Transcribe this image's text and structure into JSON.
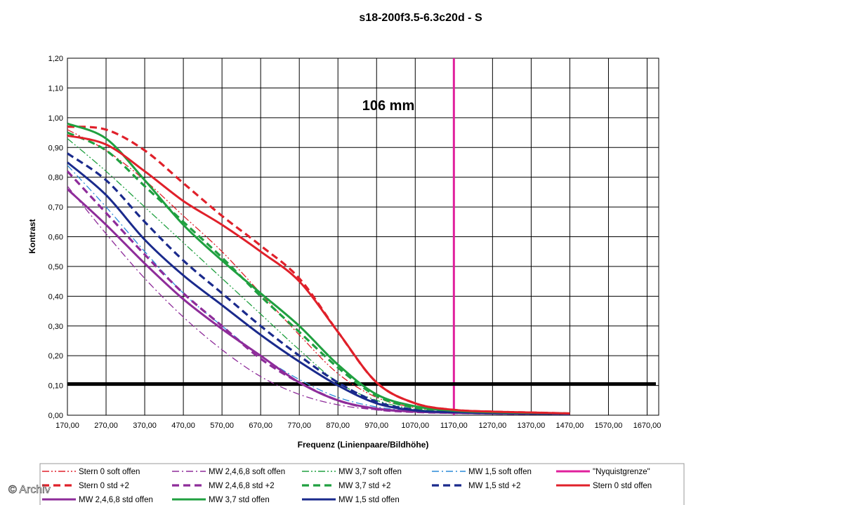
{
  "watermark": "© Archiv",
  "chart_data": {
    "type": "line",
    "title": "s18-200f3.5-6.3c20d - S",
    "annotation": "106 mm",
    "xlabel": "Frequenz (Linienpaare/Bildhöhe)",
    "ylabel": "Kontrast",
    "xlim": [
      170,
      1700
    ],
    "ylim": [
      0,
      1.2
    ],
    "x_ticks": [
      "170,00",
      "270,00",
      "370,00",
      "470,00",
      "570,00",
      "670,00",
      "770,00",
      "870,00",
      "970,00",
      "1070,00",
      "1170,00",
      "1270,00",
      "1370,00",
      "1470,00",
      "1570,00",
      "1670,00"
    ],
    "y_ticks": [
      "0,00",
      "0,10",
      "0,20",
      "0,30",
      "0,40",
      "0,50",
      "0,60",
      "0,70",
      "0,80",
      "0,90",
      "1,00",
      "1,10",
      "1,20"
    ],
    "grid": true,
    "legend_position": "bottom",
    "reference_lines": [
      {
        "name": "\"Nyquistgrenze\"",
        "orientation": "vertical",
        "value": 1170,
        "color": "#e0209c"
      },
      {
        "orientation": "horizontal",
        "value": 0.105,
        "color": "#000000"
      }
    ],
    "series": [
      {
        "name": "Stern 0 soft offen",
        "color": "#e0202a",
        "style": "dashdotdot",
        "x": [
          170,
          270,
          370,
          470,
          570,
          670,
          770,
          870,
          970,
          1070,
          1170,
          1270,
          1370,
          1470
        ],
        "y": [
          0.96,
          0.89,
          0.79,
          0.67,
          0.55,
          0.41,
          0.27,
          0.14,
          0.06,
          0.025,
          0.015,
          0.01,
          0.007,
          0.005
        ]
      },
      {
        "name": "MW 2,4,6,8 soft offen",
        "color": "#8e2c9a",
        "style": "dashdot",
        "x": [
          170,
          270,
          370,
          470,
          570,
          670,
          770,
          870,
          970,
          1070,
          1170,
          1270,
          1370,
          1470
        ],
        "y": [
          0.77,
          0.61,
          0.46,
          0.33,
          0.22,
          0.13,
          0.07,
          0.035,
          0.018,
          0.01,
          0.008,
          0.006,
          0.005,
          0.004
        ]
      },
      {
        "name": "MW 3,7 soft offen",
        "color": "#20a040",
        "style": "dashdotdot",
        "x": [
          170,
          270,
          370,
          470,
          570,
          670,
          770,
          870,
          970,
          1070,
          1170,
          1270,
          1370,
          1470
        ],
        "y": [
          0.93,
          0.82,
          0.7,
          0.58,
          0.46,
          0.34,
          0.22,
          0.11,
          0.05,
          0.02,
          0.012,
          0.008,
          0.006,
          0.005
        ]
      },
      {
        "name": "MW 1,5 soft offen",
        "color": "#2a8ad8",
        "style": "dashdot",
        "x": [
          170,
          270,
          370,
          470,
          570,
          670,
          770,
          870,
          970,
          1070,
          1170,
          1270,
          1370,
          1470
        ],
        "y": [
          0.84,
          0.7,
          0.55,
          0.41,
          0.3,
          0.2,
          0.12,
          0.06,
          0.028,
          0.014,
          0.009,
          0.007,
          0.005,
          0.004
        ]
      },
      {
        "name": "\"Nyquistgrenze\"",
        "color": "#e0209c",
        "style": "solid",
        "x": [],
        "y": []
      },
      {
        "name": "Stern 0 std +2",
        "color": "#e0202a",
        "style": "dash",
        "x": [
          170,
          270,
          370,
          470,
          570,
          670,
          770,
          870,
          970,
          1070,
          1170,
          1270,
          1370,
          1470
        ],
        "y": [
          0.97,
          0.96,
          0.89,
          0.78,
          0.67,
          0.57,
          0.46,
          0.28,
          0.11,
          0.04,
          0.018,
          0.012,
          0.009,
          0.006
        ]
      },
      {
        "name": "MW 2,4,6,8 std +2",
        "color": "#8e2c9a",
        "style": "dash",
        "x": [
          170,
          270,
          370,
          470,
          570,
          670,
          770,
          870,
          970,
          1070,
          1170,
          1270,
          1370,
          1470
        ],
        "y": [
          0.82,
          0.68,
          0.54,
          0.41,
          0.3,
          0.19,
          0.11,
          0.05,
          0.02,
          0.011,
          0.008,
          0.006,
          0.005,
          0.004
        ]
      },
      {
        "name": "MW 3,7 std +2",
        "color": "#20a040",
        "style": "dash",
        "x": [
          170,
          270,
          370,
          470,
          570,
          670,
          770,
          870,
          970,
          1070,
          1170,
          1270,
          1370,
          1470
        ],
        "y": [
          0.95,
          0.89,
          0.77,
          0.65,
          0.53,
          0.4,
          0.28,
          0.16,
          0.065,
          0.025,
          0.014,
          0.009,
          0.007,
          0.005
        ]
      },
      {
        "name": "MW 1,5 std +2",
        "color": "#1a2a8c",
        "style": "dash",
        "x": [
          170,
          270,
          370,
          470,
          570,
          670,
          770,
          870,
          970,
          1070,
          1170,
          1270,
          1370,
          1470
        ],
        "y": [
          0.88,
          0.79,
          0.65,
          0.52,
          0.41,
          0.3,
          0.2,
          0.11,
          0.045,
          0.018,
          0.01,
          0.007,
          0.006,
          0.004
        ]
      },
      {
        "name": "Stern 0 std offen",
        "color": "#e0202a",
        "style": "solid",
        "x": [
          170,
          270,
          370,
          470,
          570,
          670,
          770,
          870,
          970,
          1070,
          1170,
          1270,
          1370,
          1470
        ],
        "y": [
          0.94,
          0.91,
          0.82,
          0.72,
          0.64,
          0.55,
          0.45,
          0.28,
          0.11,
          0.04,
          0.018,
          0.012,
          0.009,
          0.006
        ]
      },
      {
        "name": "MW 2,4,6,8 std offen",
        "color": "#8e2c9a",
        "style": "solid",
        "x": [
          170,
          270,
          370,
          470,
          570,
          670,
          770,
          870,
          970,
          1070,
          1170,
          1270,
          1370,
          1470
        ],
        "y": [
          0.76,
          0.64,
          0.51,
          0.39,
          0.29,
          0.2,
          0.11,
          0.05,
          0.022,
          0.012,
          0.008,
          0.006,
          0.005,
          0.004
        ]
      },
      {
        "name": "MW 3,7 std offen",
        "color": "#20a040",
        "style": "solid",
        "x": [
          170,
          270,
          370,
          470,
          570,
          670,
          770,
          870,
          970,
          1070,
          1170,
          1270,
          1370,
          1470
        ],
        "y": [
          0.98,
          0.93,
          0.79,
          0.64,
          0.52,
          0.41,
          0.3,
          0.17,
          0.07,
          0.03,
          0.015,
          0.01,
          0.008,
          0.006
        ]
      },
      {
        "name": "MW 1,5 std offen",
        "color": "#1a2a8c",
        "style": "solid",
        "x": [
          170,
          270,
          370,
          470,
          570,
          670,
          770,
          870,
          970,
          1070,
          1170,
          1270,
          1370,
          1470
        ],
        "y": [
          0.85,
          0.74,
          0.59,
          0.47,
          0.37,
          0.27,
          0.18,
          0.1,
          0.04,
          0.016,
          0.01,
          0.007,
          0.006,
          0.004
        ]
      }
    ]
  }
}
